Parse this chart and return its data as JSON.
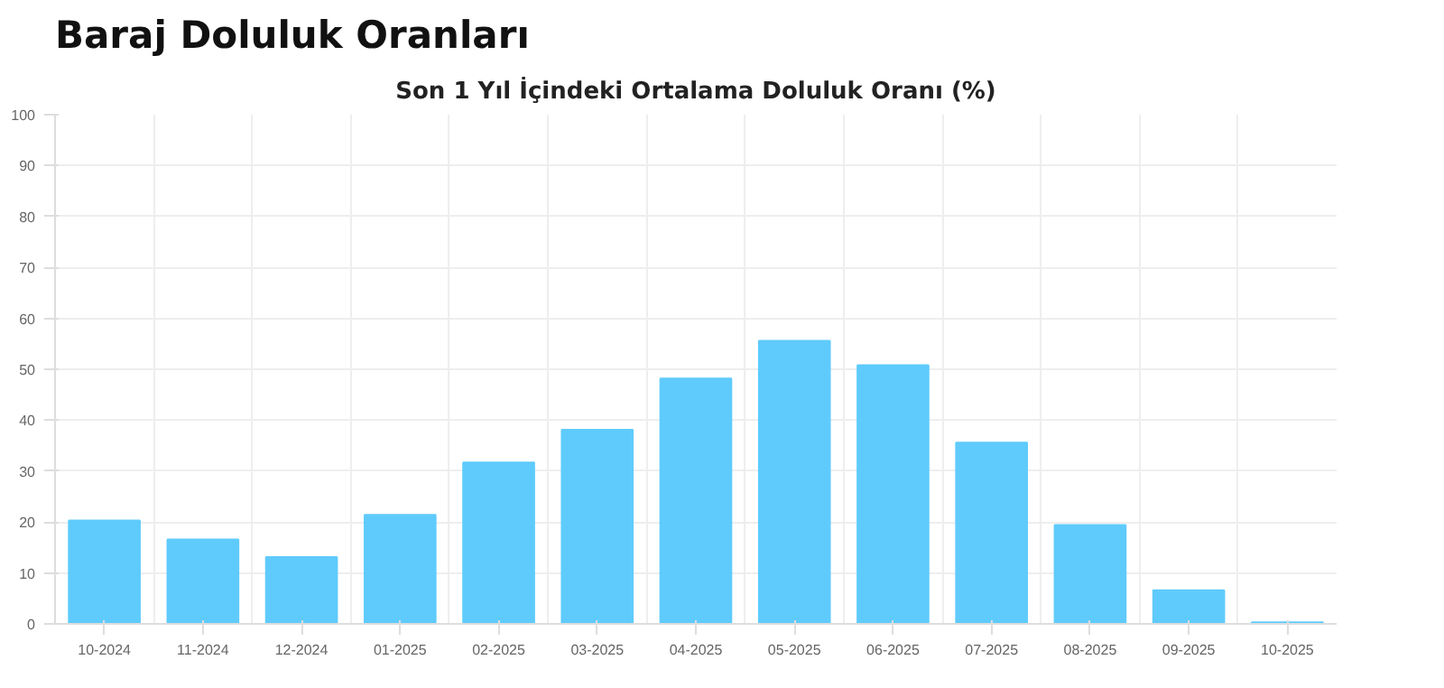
{
  "chart_data": {
    "type": "bar",
    "title": "Baraj Doluluk Oranları",
    "subtitle": "Son 1 Yıl İçindeki Ortalama Doluluk Oranı (%)",
    "categories": [
      "10-2024",
      "11-2024",
      "12-2024",
      "01-2025",
      "02-2025",
      "03-2025",
      "04-2025",
      "05-2025",
      "06-2025",
      "07-2025",
      "08-2025",
      "09-2025",
      "10-2025"
    ],
    "values": [
      20.3,
      16.6,
      13.1,
      21.4,
      31.7,
      38.1,
      48.2,
      55.6,
      50.8,
      35.6,
      19.4,
      6.6,
      0.3
    ],
    "color": "#5fcbfc",
    "ylim": [
      0,
      100
    ],
    "yticks": [
      0,
      10,
      20,
      30,
      40,
      50,
      60,
      70,
      80,
      90,
      100
    ],
    "grid": true
  }
}
